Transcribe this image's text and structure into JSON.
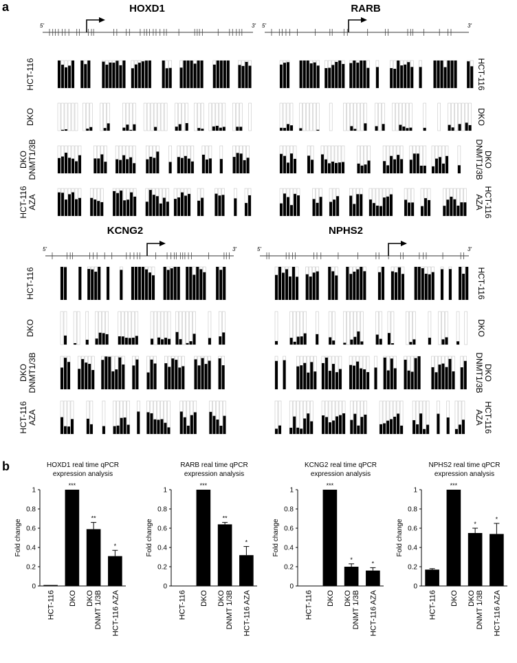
{
  "panel_a": {
    "letter": "a",
    "prime5": "5'",
    "prime3": "3'",
    "genes": [
      {
        "name": "HOXD1",
        "label_side": "left",
        "samples": [
          "HCT-116",
          "DKO",
          "DKO DNMT1/3B",
          "HCT-116 AZA"
        ],
        "methylation": [
          0.95,
          0.05,
          0.55,
          0.7
        ]
      },
      {
        "name": "RARB",
        "label_side": "right",
        "samples": [
          "HCT-116",
          "DKO",
          "DKO DNMT1/3B",
          "HCT-116 AZA"
        ],
        "methylation": [
          0.95,
          0.05,
          0.5,
          0.6
        ]
      },
      {
        "name": "KCNG2",
        "label_side": "left",
        "samples": [
          "HCT-116",
          "DKO",
          "DKO DNMT1/3B",
          "HCT-116 AZA"
        ],
        "methylation": [
          0.95,
          0.15,
          0.75,
          0.45
        ]
      },
      {
        "name": "NPHS2",
        "label_side": "right",
        "samples": [
          "HCT-116",
          "DKO",
          "DKO DNMT1/3B",
          "HCT-116 AZA"
        ],
        "methylation": [
          0.95,
          0.15,
          0.75,
          0.4
        ]
      }
    ]
  },
  "panel_b": {
    "letter": "b"
  },
  "chart_data": [
    {
      "type": "bar",
      "title": "HOXD1 real time qPCR expression analysis",
      "title_lines": [
        "HOXD1 real time qPCR",
        "expression analysis"
      ],
      "ylabel": "Fold change",
      "ylim": [
        0,
        1
      ],
      "ytick_step": 0.2,
      "categories": [
        "HCT-116",
        "DKO",
        "DKO DNMT 1/3B",
        "HCT-116 AZA"
      ],
      "category_lines": [
        [
          "HCT-116"
        ],
        [
          "DKO"
        ],
        [
          "DKO",
          "DNMT 1/3B"
        ],
        [
          "HCT-116 AZA"
        ]
      ],
      "values": [
        0.01,
        1.0,
        0.59,
        0.31
      ],
      "errors": [
        0.0,
        0.0,
        0.07,
        0.06
      ],
      "significance": [
        "",
        "***",
        "**",
        "*"
      ]
    },
    {
      "type": "bar",
      "title": "RARB real time qPCR expression analysis",
      "title_lines": [
        "RARB real time qPCR",
        "expression analysis"
      ],
      "ylabel": "Fold change",
      "ylim": [
        0,
        1
      ],
      "ytick_step": 0.2,
      "categories": [
        "HCT-116",
        "DKO",
        "DKO DNMT 1/3B",
        "HCT-116 AZA"
      ],
      "category_lines": [
        [
          "HCT-116"
        ],
        [
          "DKO"
        ],
        [
          "DKO",
          "DNMT 1/3B"
        ],
        [
          "HCT-116 AZA"
        ]
      ],
      "values": [
        0.0,
        1.0,
        0.64,
        0.32
      ],
      "errors": [
        0.0,
        0.0,
        0.02,
        0.09
      ],
      "significance": [
        "",
        "***",
        "**",
        "*"
      ]
    },
    {
      "type": "bar",
      "title": "KCNG2 real time qPCR expression analysis",
      "title_lines": [
        "KCNG2 real time qPCR",
        "expression analysis"
      ],
      "ylabel": "Fold change",
      "ylim": [
        0,
        1
      ],
      "ytick_step": 0.2,
      "categories": [
        "HCT-116",
        "DKO",
        "DKO DNMT 1/3B",
        "HCT-116 AZA"
      ],
      "category_lines": [
        [
          "HCT-116"
        ],
        [
          "DKO"
        ],
        [
          "DKO",
          "DNMT 1/3B"
        ],
        [
          "HCT-116 AZA"
        ]
      ],
      "values": [
        0.0,
        1.0,
        0.2,
        0.16
      ],
      "errors": [
        0.0,
        0.0,
        0.03,
        0.03
      ],
      "significance": [
        "",
        "***",
        "*",
        "*"
      ]
    },
    {
      "type": "bar",
      "title": "NPHS2 real time qPCR expression analysis",
      "title_lines": [
        "NPHS2 real time qPCR",
        "expression analysis"
      ],
      "ylabel": "Fold change",
      "ylim": [
        0,
        1
      ],
      "ytick_step": 0.2,
      "categories": [
        "HCT-116",
        "DKO",
        "DKO DNMT 1/3B",
        "HCT-116 AZA"
      ],
      "category_lines": [
        [
          "HCT-116"
        ],
        [
          "DKO"
        ],
        [
          "DKO",
          "DNMT 1/3B"
        ],
        [
          "HCT-116 AZA"
        ]
      ],
      "values": [
        0.17,
        1.0,
        0.55,
        0.54
      ],
      "errors": [
        0.01,
        0.0,
        0.05,
        0.11
      ],
      "significance": [
        "",
        "***",
        "*",
        "*"
      ]
    }
  ]
}
